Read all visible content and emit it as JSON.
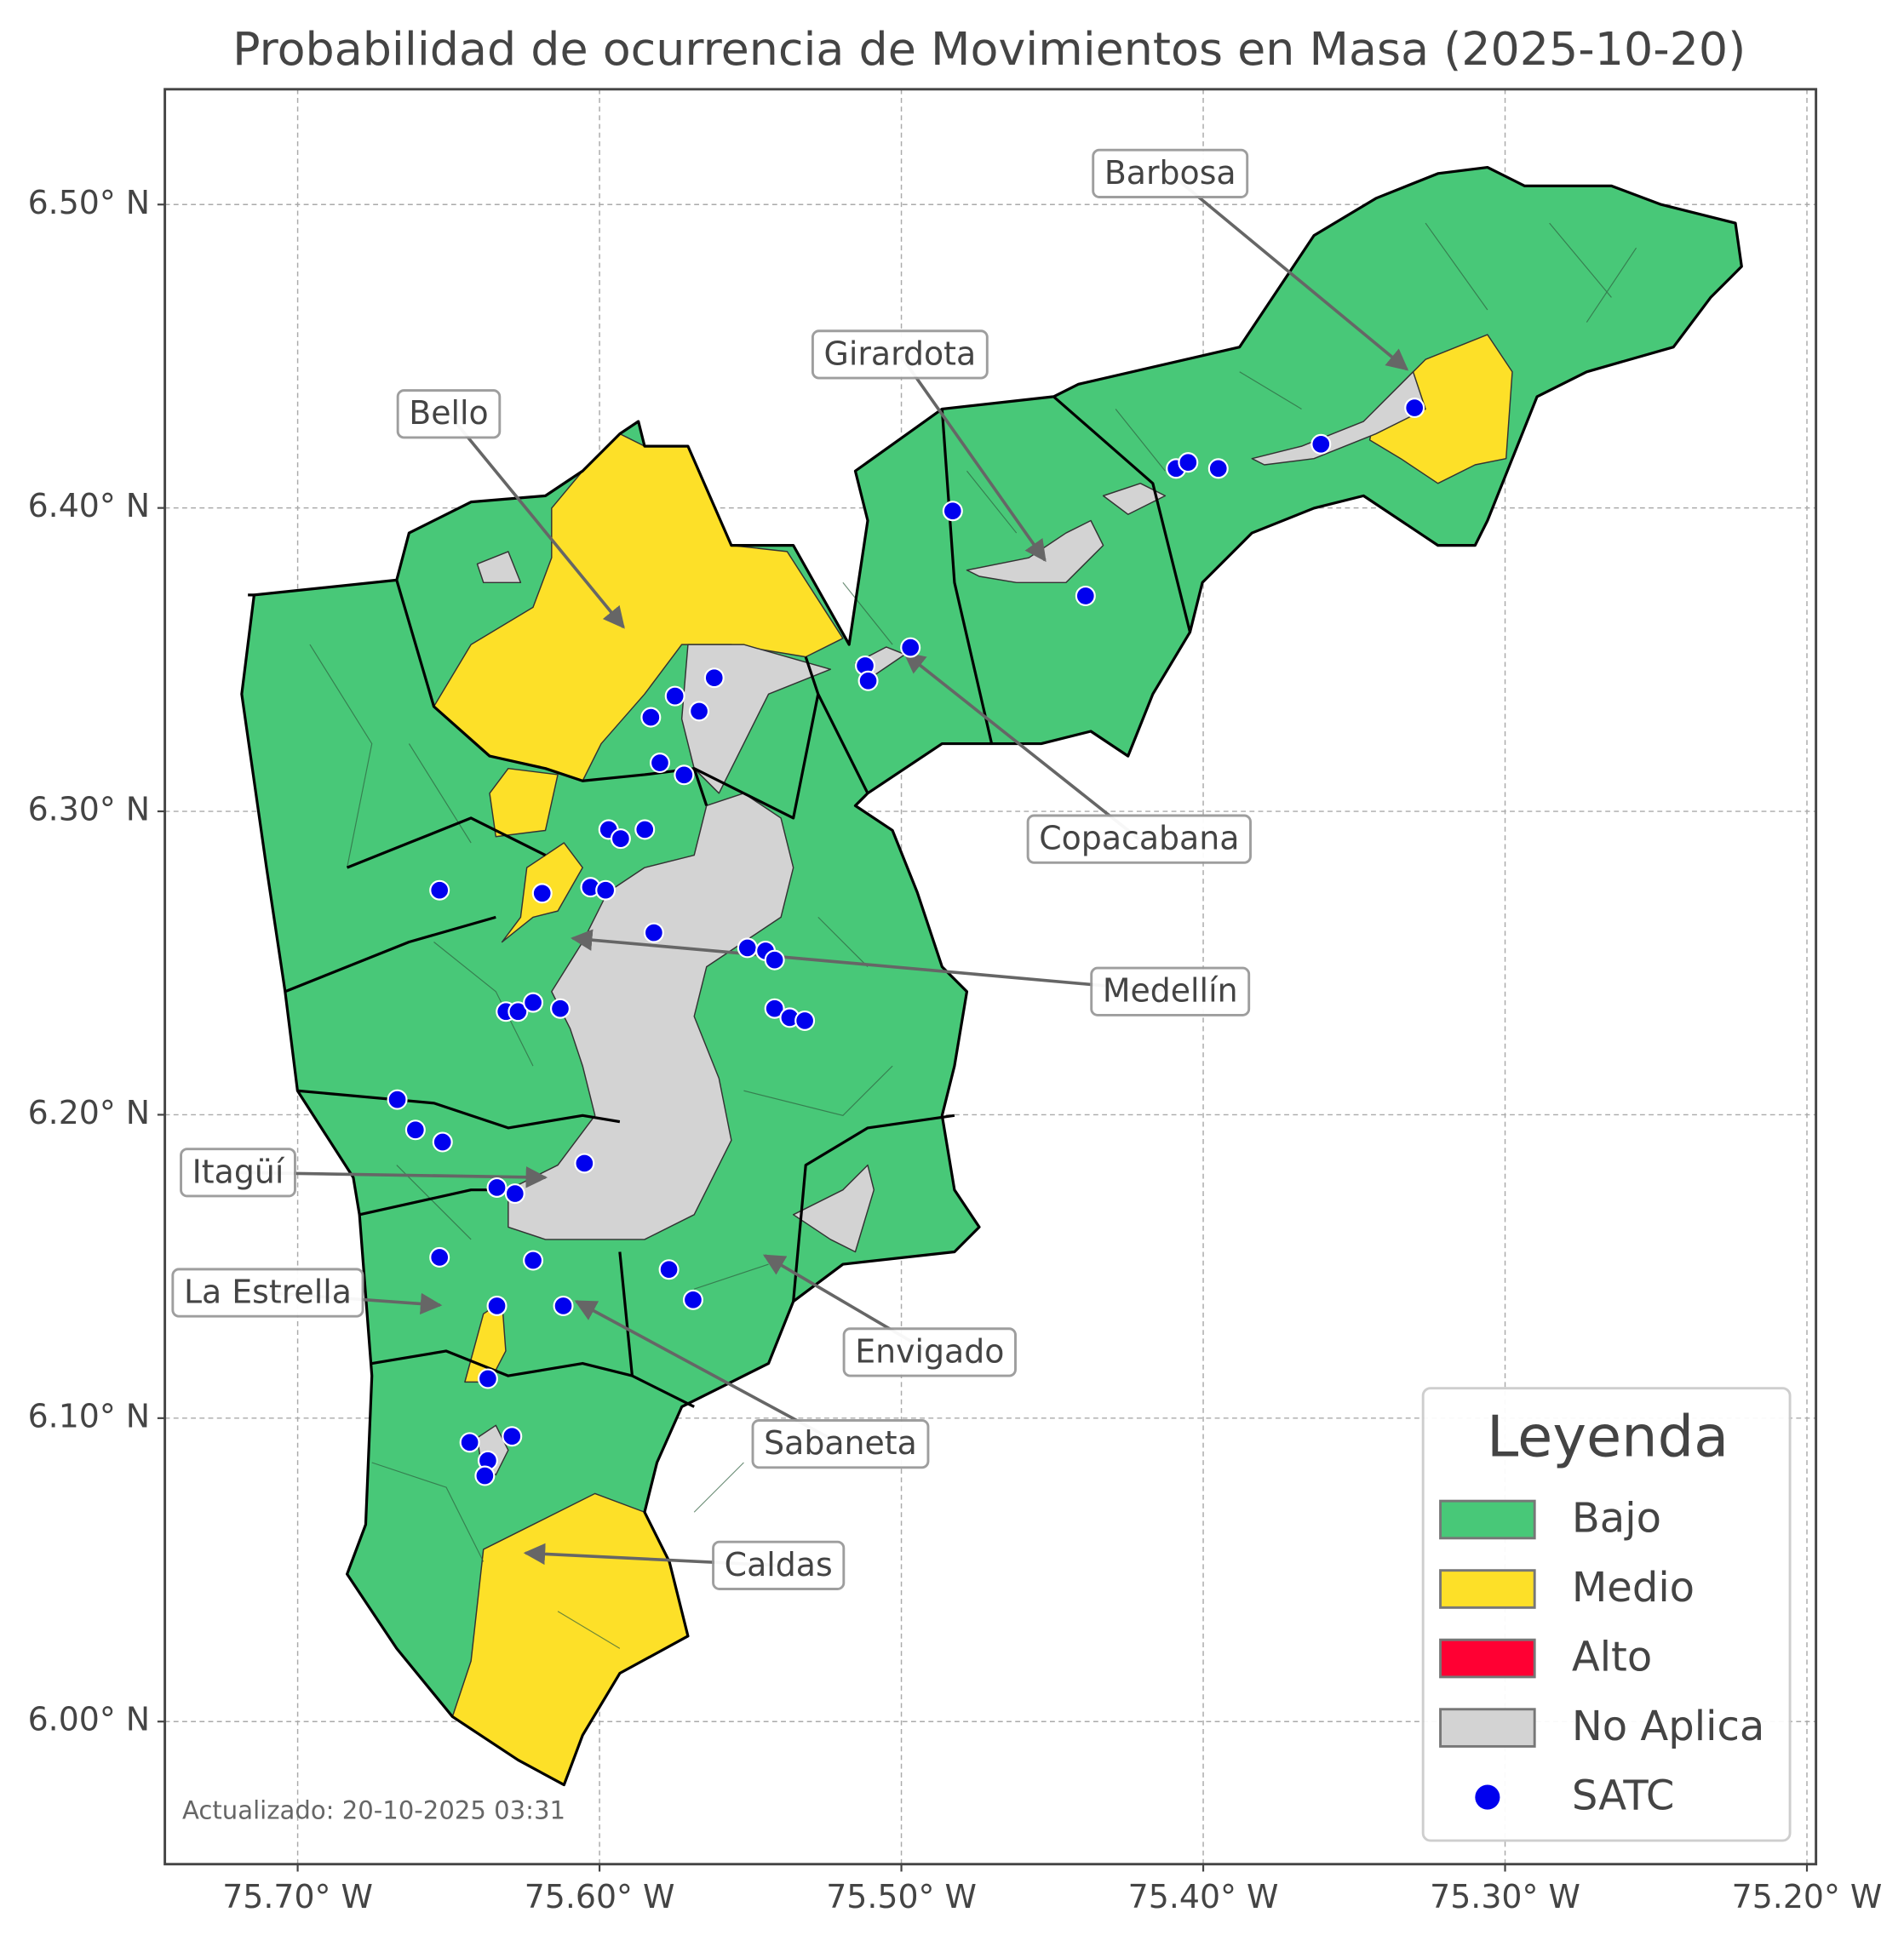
{
  "chart_data": {
    "type": "map",
    "title": "Probabilidad de ocurrencia de Movimientos en Masa (2025-10-20)",
    "xlim": [
      -75.744,
      -75.197
    ],
    "ylim": [
      5.953,
      6.538
    ],
    "xticks": [
      {
        "value": -75.7,
        "label": "75.70° W"
      },
      {
        "value": -75.6,
        "label": "75.60° W"
      },
      {
        "value": -75.5,
        "label": "75.50° W"
      },
      {
        "value": -75.4,
        "label": "75.40° W"
      },
      {
        "value": -75.3,
        "label": "75.30° W"
      },
      {
        "value": -75.2,
        "label": "75.20° W"
      }
    ],
    "yticks": [
      {
        "value": 6.0,
        "label": "6.00° N"
      },
      {
        "value": 6.1,
        "label": "6.10° N"
      },
      {
        "value": 6.2,
        "label": "6.20° N"
      },
      {
        "value": 6.3,
        "label": "6.30° N"
      },
      {
        "value": 6.4,
        "label": "6.40° N"
      },
      {
        "value": 6.5,
        "label": "6.50° N"
      }
    ],
    "grid": true,
    "legend_title": "Leyenda",
    "legend_position": "lower right",
    "classes": [
      {
        "name": "Bajo",
        "color": "#48c878"
      },
      {
        "name": "Medio",
        "color": "#fde028"
      },
      {
        "name": "Alto",
        "color": "#ff0033"
      },
      {
        "name": "No Aplica",
        "color": "#d3d3d3"
      }
    ],
    "series": [
      {
        "name": "SATC",
        "color": "#0000ee",
        "x": [
          -75.33,
          -75.361,
          -75.409,
          -75.405,
          -75.395,
          -75.483,
          -75.439,
          -75.497,
          -75.512,
          -75.511,
          -75.562,
          -75.575,
          -75.567,
          -75.583,
          -75.58,
          -75.572,
          -75.597,
          -75.593,
          -75.585,
          -75.653,
          -75.619,
          -75.603,
          -75.598,
          -75.582,
          -75.551,
          -75.545,
          -75.542,
          -75.542,
          -75.537,
          -75.532,
          -75.631,
          -75.627,
          -75.622,
          -75.613,
          -75.667,
          -75.661,
          -75.652,
          -75.605,
          -75.634,
          -75.628,
          -75.653,
          -75.622,
          -75.577,
          -75.569,
          -75.634,
          -75.612,
          -75.637,
          -75.643,
          -75.629,
          -75.637,
          -75.638
        ],
        "values": [
          6.433,
          6.421,
          6.413,
          6.415,
          6.413,
          6.399,
          6.371,
          6.354,
          6.348,
          6.343,
          6.344,
          6.338,
          6.333,
          6.331,
          6.316,
          6.312,
          6.294,
          6.291,
          6.294,
          6.274,
          6.273,
          6.275,
          6.274,
          6.26,
          6.255,
          6.254,
          6.251,
          6.235,
          6.232,
          6.231,
          6.234,
          6.234,
          6.237,
          6.235,
          6.205,
          6.195,
          6.191,
          6.184,
          6.176,
          6.174,
          6.153,
          6.152,
          6.149,
          6.139,
          6.137,
          6.137,
          6.113,
          6.092,
          6.094,
          6.086,
          6.081
        ]
      }
    ],
    "annotations": [
      "Barbosa",
      "Girardota",
      "Bello",
      "Copacabana",
      "Medellín",
      "Itagüí",
      "La Estrella",
      "Envigado",
      "Sabaneta",
      "Caldas"
    ],
    "note": "Actualizado: 20-10-2025 03:31"
  }
}
